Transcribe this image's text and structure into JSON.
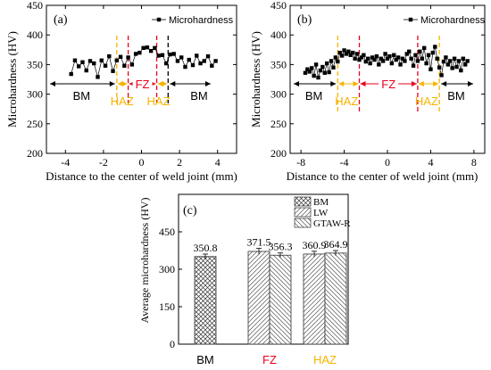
{
  "chart_data": [
    {
      "type": "line",
      "panel_label": "(a)",
      "xlabel": "Distance to the center of weld joint  (mm)",
      "ylabel": "Microhardness (HV)",
      "xlim": [
        -5,
        5
      ],
      "ylim": [
        200,
        450
      ],
      "xticks": [
        "-4",
        "-2",
        "0",
        "2",
        "4"
      ],
      "yticks": [
        "200",
        "250",
        "300",
        "350",
        "400",
        "450"
      ],
      "grid": false,
      "legend_position": "top-right",
      "series": [
        {
          "name": "Microhardness",
          "x": [
            -3.7,
            -3.5,
            -3.3,
            -3.1,
            -2.9,
            -2.7,
            -2.5,
            -2.3,
            -2.1,
            -1.9,
            -1.7,
            -1.5,
            -1.3,
            -1.1,
            -0.9,
            -0.7,
            -0.5,
            -0.3,
            -0.1,
            0.1,
            0.3,
            0.5,
            0.7,
            0.9,
            1.1,
            1.3,
            1.5,
            1.7,
            1.9,
            2.1,
            2.3,
            2.5,
            2.7,
            2.9,
            3.1,
            3.3,
            3.5,
            3.7,
            3.9
          ],
          "y": [
            334,
            357,
            347,
            354,
            340,
            356,
            352,
            329,
            357,
            348,
            364,
            339,
            357,
            363,
            348,
            362,
            350,
            368,
            370,
            378,
            379,
            373,
            378,
            365,
            366,
            352,
            367,
            368,
            356,
            362,
            346,
            358,
            349,
            365,
            352,
            356,
            364,
            348,
            356
          ]
        }
      ],
      "regions": [
        {
          "label": "BM",
          "color": "#000000"
        },
        {
          "label": "FZ",
          "color": "#e8001c"
        },
        {
          "label": "BM",
          "color": "#000000"
        },
        {
          "label": "HAZ",
          "color": "#f5b400"
        },
        {
          "label": "HAZ",
          "color": "#f5b400"
        }
      ],
      "boundary_lines": [
        {
          "x": -1.3,
          "color": "#f5b400"
        },
        {
          "x": -0.7,
          "color": "#e8001c"
        },
        {
          "x": 0.8,
          "color": "#e8001c"
        },
        {
          "x": 1.4,
          "color": "#000000"
        }
      ]
    },
    {
      "type": "line",
      "panel_label": "(b)",
      "xlabel": "Distance to the center of weld joint  (mm)",
      "ylabel": "Microhardness (HV)",
      "xlim": [
        -9,
        9
      ],
      "ylim": [
        200,
        450
      ],
      "xticks": [
        "-8",
        "-4",
        "0",
        "4",
        "8"
      ],
      "yticks": [
        "200",
        "250",
        "300",
        "350",
        "400",
        "450"
      ],
      "grid": false,
      "legend_position": "top-right",
      "series": [
        {
          "name": "Microhardness",
          "x": [
            -7.6,
            -7.4,
            -7.2,
            -7.0,
            -6.8,
            -6.6,
            -6.4,
            -6.2,
            -6.0,
            -5.8,
            -5.6,
            -5.4,
            -5.2,
            -5.0,
            -4.8,
            -4.6,
            -4.4,
            -4.2,
            -4.0,
            -3.8,
            -3.6,
            -3.4,
            -3.2,
            -3.0,
            -2.8,
            -2.6,
            -2.4,
            -2.2,
            -2.0,
            -1.8,
            -1.6,
            -1.4,
            -1.2,
            -1.0,
            -0.8,
            -0.6,
            -0.4,
            -0.2,
            0.0,
            0.2,
            0.4,
            0.6,
            0.8,
            1.0,
            1.2,
            1.4,
            1.6,
            1.8,
            2.0,
            2.2,
            2.4,
            2.6,
            2.8,
            3.0,
            3.2,
            3.4,
            3.6,
            3.8,
            4.0,
            4.2,
            4.4,
            4.6,
            4.8,
            5.0,
            5.2,
            5.4,
            5.6,
            5.8,
            6.0,
            6.2,
            6.4,
            6.6,
            6.8,
            7.0,
            7.2,
            7.4
          ],
          "y": [
            336,
            342,
            338,
            344,
            331,
            350,
            328,
            340,
            346,
            336,
            352,
            337,
            356,
            345,
            362,
            355,
            370,
            365,
            374,
            368,
            372,
            366,
            370,
            360,
            368,
            358,
            362,
            366,
            355,
            360,
            352,
            362,
            358,
            364,
            350,
            360,
            356,
            368,
            360,
            364,
            352,
            366,
            358,
            362,
            350,
            360,
            356,
            368,
            372,
            360,
            348,
            366,
            356,
            372,
            360,
            378,
            352,
            366,
            342,
            370,
            380,
            360,
            345,
            332,
            355,
            362,
            350,
            356,
            344,
            360,
            346,
            356,
            340,
            360,
            350,
            356
          ]
        }
      ],
      "regions": [
        {
          "label": "BM",
          "color": "#000000"
        },
        {
          "label": "FZ",
          "color": "#e8001c"
        },
        {
          "label": "BM",
          "color": "#000000"
        },
        {
          "label": "HAZ",
          "color": "#f5b400"
        },
        {
          "label": "HAZ",
          "color": "#f5b400"
        }
      ],
      "boundary_lines": [
        {
          "x": -4.6,
          "color": "#f5b400"
        },
        {
          "x": -2.6,
          "color": "#e8001c"
        },
        {
          "x": 2.8,
          "color": "#e8001c"
        },
        {
          "x": 4.8,
          "color": "#f5b400"
        }
      ]
    },
    {
      "type": "bar",
      "panel_label": "(c)",
      "ylabel": "Average microhardness (HV)",
      "ylim": [
        0,
        600
      ],
      "yticks": [
        "0",
        "150",
        "300",
        "450"
      ],
      "categories": [
        {
          "label": "BM",
          "color": "#000000"
        },
        {
          "label": "FZ",
          "color": "#e8001c"
        },
        {
          "label": "HAZ",
          "color": "#f5b400"
        }
      ],
      "legend_position": "top-right",
      "legend": [
        {
          "name": "BM",
          "pattern": "cross"
        },
        {
          "name": "LW",
          "pattern": "diag"
        },
        {
          "name": "GTAW-R",
          "pattern": "diag-back"
        }
      ],
      "bars": [
        {
          "category_index": 0,
          "series": "BM",
          "value": 350.8,
          "label": "350.8",
          "error": 10,
          "pattern": "cross"
        },
        {
          "category_index": 1,
          "series": "LW",
          "value": 371.5,
          "label": "371.5",
          "error": 12,
          "pattern": "diag"
        },
        {
          "category_index": 1,
          "series": "GTAW-R",
          "value": 356.3,
          "label": "356.3",
          "error": 9,
          "pattern": "diag-back"
        },
        {
          "category_index": 2,
          "series": "LW",
          "value": 360.9,
          "label": "360.9",
          "error": 11,
          "pattern": "diag"
        },
        {
          "category_index": 2,
          "series": "GTAW-R",
          "value": 364.9,
          "label": "364.9",
          "error": 10,
          "pattern": "diag-back"
        }
      ]
    }
  ]
}
